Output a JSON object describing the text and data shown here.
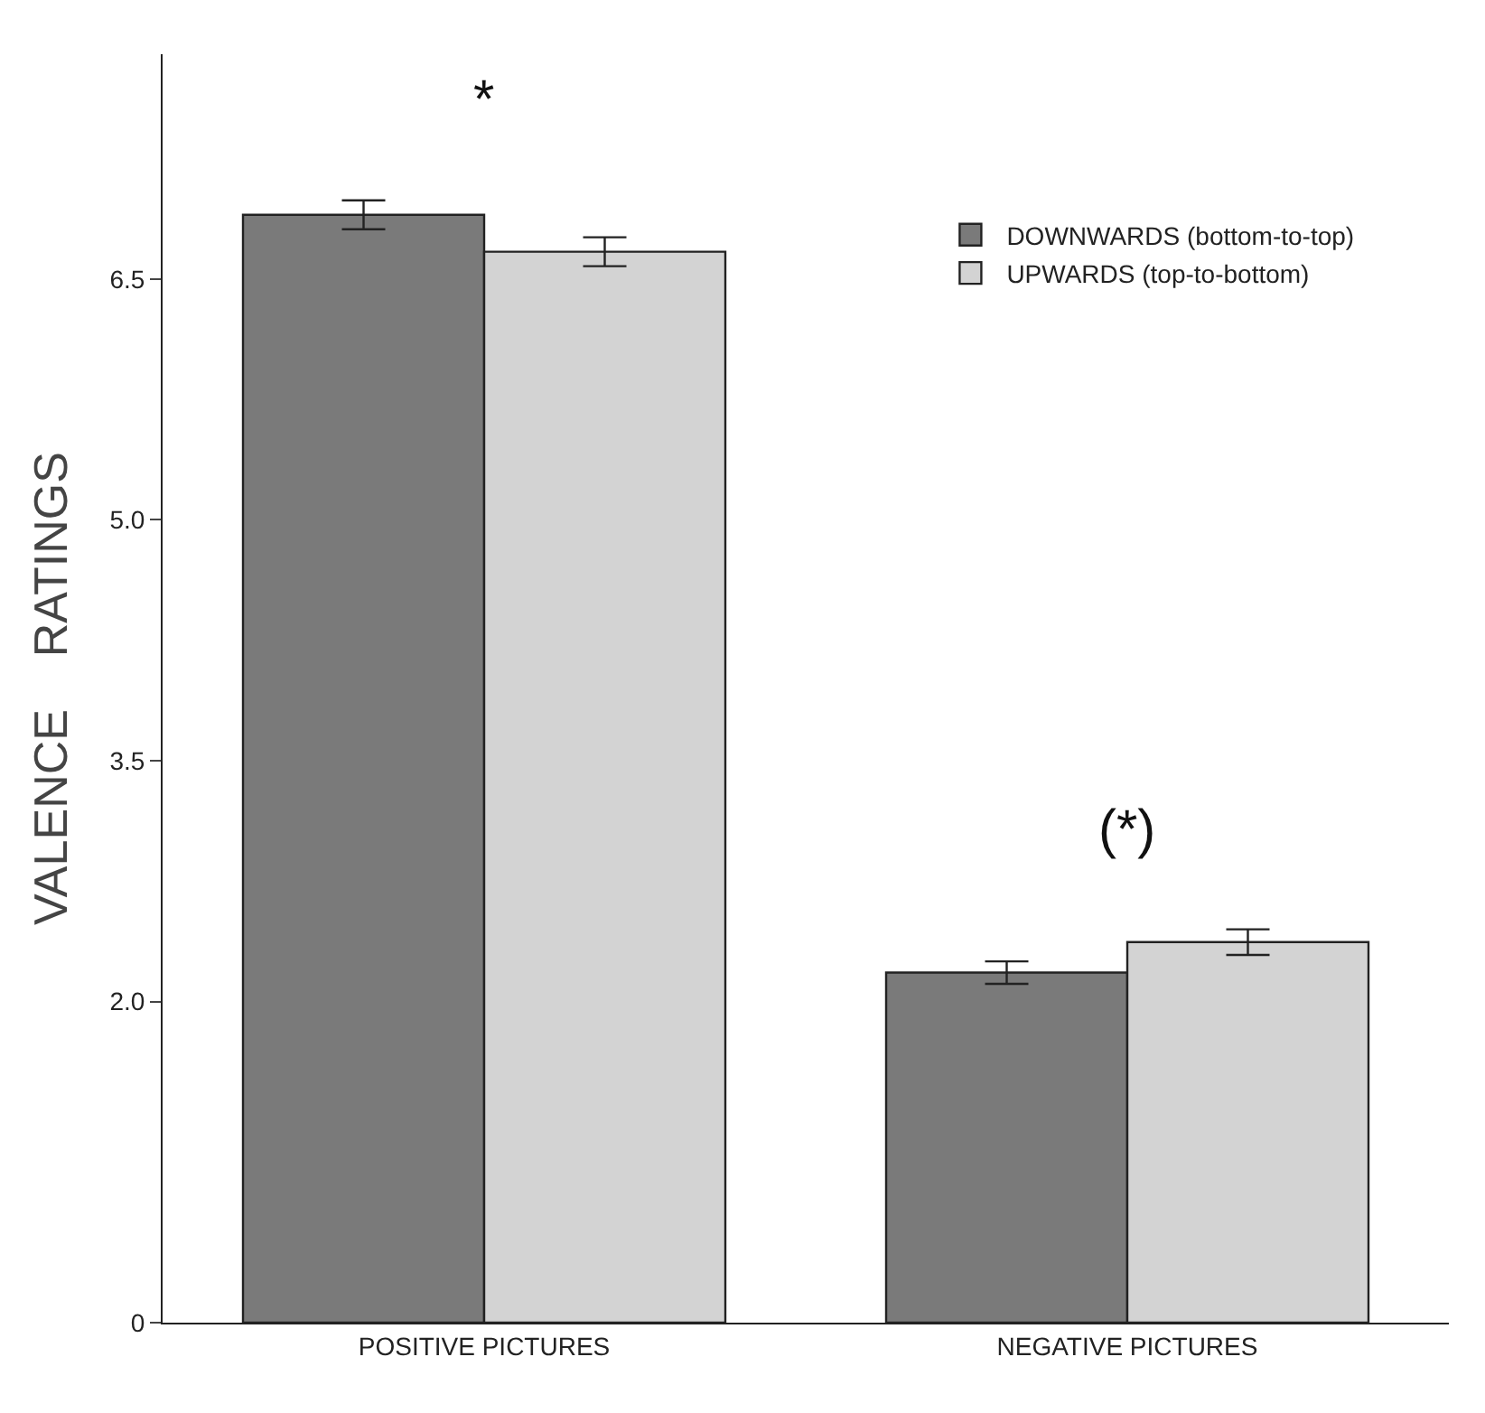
{
  "chart_data": {
    "type": "bar",
    "ylabel": "VALENCE    RATINGS",
    "categories": [
      "POSITIVE PICTURES",
      "NEGATIVE PICTURES"
    ],
    "series": [
      {
        "name": "DOWNWARDS (bottom-to-top)",
        "color": "#7a7a7a",
        "values": [
          6.9,
          2.18
        ],
        "errors": [
          0.09,
          0.07
        ]
      },
      {
        "name": "UPWARDS (top-to-bottom)",
        "color": "#d3d3d3",
        "values": [
          6.67,
          2.37
        ],
        "errors": [
          0.09,
          0.08
        ]
      }
    ],
    "ylim": [
      0,
      7.9
    ],
    "yticks": [
      {
        "value": 0,
        "label": "0"
      },
      {
        "value": 2,
        "label": "2.0"
      },
      {
        "value": 3.5,
        "label": "3.5"
      },
      {
        "value": 5,
        "label": "5.0"
      },
      {
        "value": 6.5,
        "label": "6.5"
      }
    ],
    "annotations": [
      "*",
      "(*)"
    ],
    "legend": "top right"
  }
}
